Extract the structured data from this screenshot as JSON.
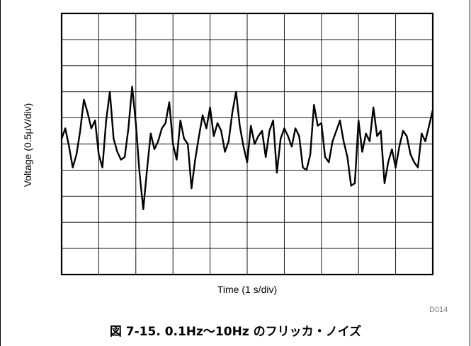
{
  "figure": {
    "caption": "図 7-15. 0.1Hz～10Hz のフリッカ・ノイズ",
    "doc_id": "D014"
  },
  "chart_data": {
    "type": "line",
    "title": "",
    "xlabel": "Time (1 s/div)",
    "ylabel": "Voltage (0.5µV/div)",
    "x_divisions": 10,
    "y_divisions": 10,
    "xlim": [
      0,
      10
    ],
    "ylim": [
      -2.5,
      2.5
    ],
    "grid": true,
    "x_unit": "s",
    "y_unit": "µV",
    "series": [
      {
        "color": "#000000",
        "x": [
          0.0,
          0.1,
          0.2,
          0.3,
          0.4,
          0.5,
          0.6,
          0.7,
          0.8,
          0.9,
          1.0,
          1.1,
          1.2,
          1.3,
          1.4,
          1.5,
          1.6,
          1.7,
          1.8,
          1.9,
          2.0,
          2.1,
          2.2,
          2.3,
          2.4,
          2.5,
          2.6,
          2.7,
          2.8,
          2.9,
          3.0,
          3.1,
          3.2,
          3.3,
          3.4,
          3.5,
          3.6,
          3.7,
          3.8,
          3.9,
          4.0,
          4.1,
          4.2,
          4.3,
          4.4,
          4.5,
          4.6,
          4.7,
          4.8,
          4.9,
          5.0,
          5.1,
          5.2,
          5.3,
          5.4,
          5.5,
          5.6,
          5.7,
          5.8,
          5.9,
          6.0,
          6.1,
          6.2,
          6.3,
          6.4,
          6.5,
          6.6,
          6.7,
          6.8,
          6.9,
          7.0,
          7.1,
          7.2,
          7.3,
          7.4,
          7.5,
          7.6,
          7.7,
          7.8,
          7.9,
          8.0,
          8.1,
          8.2,
          8.3,
          8.4,
          8.5,
          8.6,
          8.7,
          8.8,
          8.9,
          9.0,
          9.1,
          9.2,
          9.3,
          9.4,
          9.5,
          9.6,
          9.7,
          9.8,
          9.9,
          10.0
        ],
        "values": [
          0.1,
          0.3,
          -0.05,
          -0.45,
          -0.2,
          0.25,
          0.85,
          0.6,
          0.3,
          0.45,
          -0.2,
          -0.45,
          0.45,
          1.0,
          0.1,
          -0.15,
          -0.3,
          -0.25,
          0.3,
          1.1,
          0.4,
          -0.55,
          -1.25,
          -0.5,
          0.2,
          -0.1,
          0.05,
          0.3,
          0.4,
          0.8,
          0.0,
          -0.3,
          0.45,
          0.1,
          0.0,
          -0.85,
          -0.3,
          0.15,
          0.55,
          0.3,
          0.7,
          0.15,
          0.4,
          0.25,
          -0.15,
          0.05,
          0.6,
          1.0,
          0.35,
          -0.05,
          -0.35,
          0.35,
          0.0,
          0.15,
          0.25,
          -0.25,
          0.25,
          0.45,
          -0.55,
          0.1,
          0.3,
          0.15,
          -0.05,
          0.3,
          0.15,
          -0.45,
          -0.5,
          -0.2,
          0.75,
          0.35,
          0.4,
          -0.25,
          -0.35,
          0.05,
          0.25,
          0.45,
          0.05,
          -0.25,
          -0.8,
          -0.75,
          0.45,
          -0.15,
          0.2,
          0.05,
          0.7,
          0.15,
          0.25,
          -0.75,
          -0.35,
          -0.1,
          -0.45,
          -0.05,
          0.25,
          0.15,
          -0.2,
          -0.35,
          -0.45,
          0.2,
          0.05,
          0.35,
          0.65
        ]
      }
    ]
  }
}
